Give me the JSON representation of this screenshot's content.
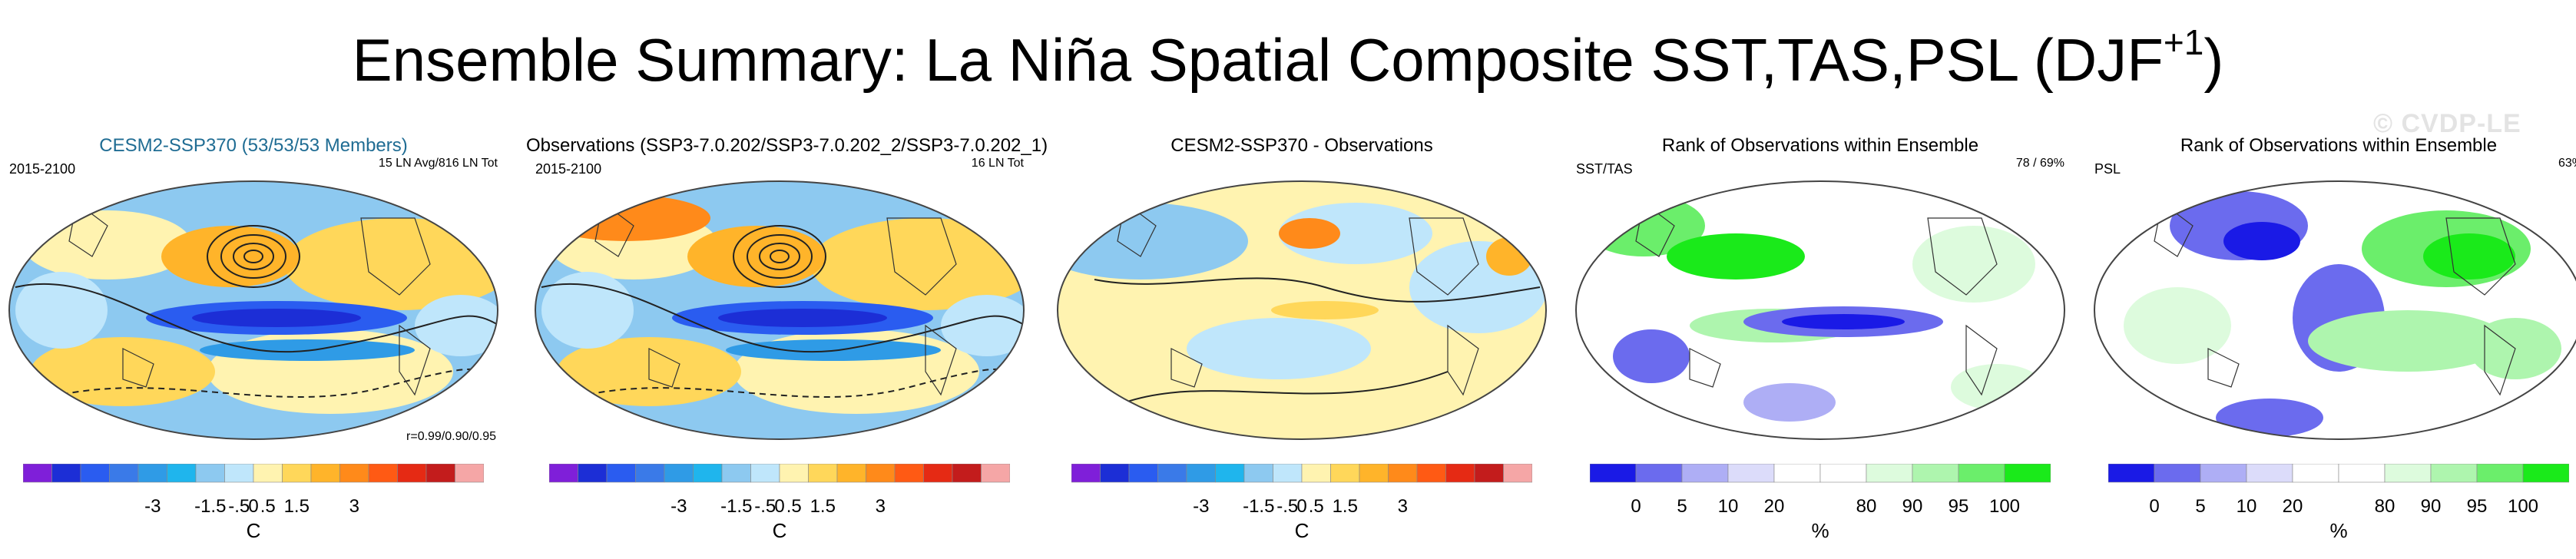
{
  "title": "Ensemble Summary: La Niña Spatial Composite SST,TAS,PSL (DJF",
  "title_sup": "+1",
  "title_end": ")",
  "watermark": "© CVDP-LE",
  "colors": {
    "temp_scale": [
      "#7f1fd9",
      "#1c2ed6",
      "#2a5cf0",
      "#3a7ae8",
      "#2f9be6",
      "#1fb5ed",
      "#8dc9f0",
      "#bfe6fb",
      "#fff3b0",
      "#ffd75a",
      "#ffb42a",
      "#ff8a1a",
      "#ff5a14",
      "#e52a14",
      "#c31c1c",
      "#f5a6a6"
    ],
    "rank_scale": [
      "#1a1ae6",
      "#6b6bee",
      "#aeaef5",
      "#dcdcfa",
      "#ffffff",
      "#ffffff",
      "#ddfbdd",
      "#aef5ae",
      "#6bee6b",
      "#1aea1a"
    ]
  },
  "panels": [
    {
      "title": "CESM2-SSP370 (53/53/53 Members)",
      "upper_left": "2015-2100",
      "upper_right": "15 LN Avg/816 LN Tot",
      "stat": "r=0.99/0.90/0.95",
      "map_type": "sst",
      "colorbar": "temp",
      "tick_labels": [
        "-3",
        "-1.5",
        "-.5",
        "0",
        ".5",
        "1.5",
        "3"
      ],
      "unit": "C"
    },
    {
      "title": "Observations (SSP3-7.0.202/SSP3-7.0.202_2/SSP3-7.0.202_1)",
      "upper_left": "2015-2100",
      "upper_right": "16 LN Tot",
      "stat": "",
      "map_type": "sst",
      "colorbar": "temp",
      "tick_labels": [
        "-3",
        "-1.5",
        "-.5",
        "0",
        ".5",
        "1.5",
        "3"
      ],
      "unit": "C"
    },
    {
      "title": "CESM2-SSP370 - Observations",
      "upper_left": "",
      "upper_right": "",
      "stat": "",
      "map_type": "diff",
      "colorbar": "temp",
      "tick_labels": [
        "-3",
        "-1.5",
        "-.5",
        "0",
        ".5",
        "1.5",
        "3"
      ],
      "unit": "C"
    },
    {
      "title": "Rank of Observations within Ensemble",
      "upper_left": "SST/TAS",
      "upper_right": "78 /  69%",
      "stat": "",
      "map_type": "rank1",
      "colorbar": "rank",
      "tick_labels": [
        "0",
        "5",
        "10",
        "20",
        "80",
        "90",
        "95",
        "100"
      ],
      "unit": "%"
    },
    {
      "title": "Rank of Observations within Ensemble",
      "upper_left": "PSL",
      "upper_right": "63%",
      "stat": "",
      "map_type": "rank2",
      "colorbar": "rank",
      "tick_labels": [
        "0",
        "5",
        "10",
        "20",
        "80",
        "90",
        "95",
        "100"
      ],
      "unit": "%"
    }
  ]
}
